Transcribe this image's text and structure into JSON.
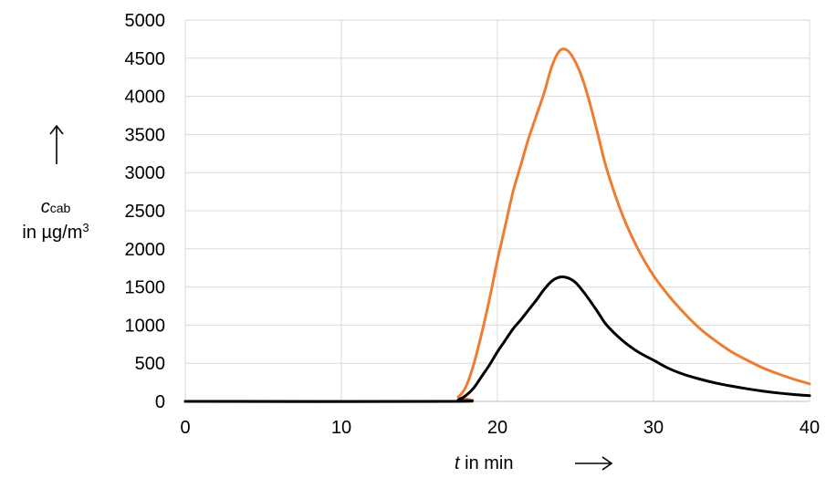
{
  "chart_data": {
    "type": "line",
    "xlim": [
      0,
      40
    ],
    "ylim": [
      0,
      5000
    ],
    "x_ticks": [
      "0",
      "10",
      "20",
      "30",
      "40"
    ],
    "y_ticks": [
      "0",
      "500",
      "1000",
      "1500",
      "2000",
      "2500",
      "3000",
      "3500",
      "4000",
      "4500",
      "5000"
    ],
    "grid": true,
    "ylabel": {
      "symbol": "c",
      "subscript": "cab",
      "unit_prefix": "in µg/m",
      "unit_exp": "3"
    },
    "xlabel": {
      "symbol": "t",
      "unit": " in min"
    },
    "series": [
      {
        "color": "#ED7D31",
        "points": [
          [
            0,
            0
          ],
          [
            17,
            0
          ],
          [
            17.5,
            60
          ],
          [
            18,
            200
          ],
          [
            18.5,
            500
          ],
          [
            19,
            900
          ],
          [
            19.5,
            1350
          ],
          [
            20,
            1850
          ],
          [
            20.5,
            2300
          ],
          [
            21,
            2750
          ],
          [
            21.5,
            3100
          ],
          [
            22,
            3450
          ],
          [
            22.5,
            3750
          ],
          [
            23,
            4050
          ],
          [
            23.5,
            4400
          ],
          [
            24,
            4600
          ],
          [
            24.5,
            4600
          ],
          [
            25,
            4450
          ],
          [
            25.5,
            4200
          ],
          [
            26,
            3850
          ],
          [
            26.5,
            3450
          ],
          [
            27,
            3050
          ],
          [
            28,
            2450
          ],
          [
            29,
            2000
          ],
          [
            30,
            1650
          ],
          [
            31,
            1380
          ],
          [
            32,
            1150
          ],
          [
            33,
            950
          ],
          [
            34,
            790
          ],
          [
            35,
            650
          ],
          [
            36,
            540
          ],
          [
            37,
            440
          ],
          [
            38,
            360
          ],
          [
            39,
            290
          ],
          [
            40,
            230
          ]
        ]
      },
      {
        "color": "#000000",
        "points": [
          [
            0,
            0
          ],
          [
            17,
            0
          ],
          [
            17.5,
            20
          ],
          [
            18,
            80
          ],
          [
            18.5,
            180
          ],
          [
            19,
            330
          ],
          [
            19.5,
            480
          ],
          [
            20,
            650
          ],
          [
            20.5,
            800
          ],
          [
            21,
            950
          ],
          [
            21.5,
            1070
          ],
          [
            22,
            1200
          ],
          [
            22.5,
            1330
          ],
          [
            23,
            1470
          ],
          [
            23.5,
            1580
          ],
          [
            24,
            1630
          ],
          [
            24.5,
            1620
          ],
          [
            25,
            1560
          ],
          [
            25.5,
            1440
          ],
          [
            26,
            1300
          ],
          [
            26.5,
            1150
          ],
          [
            27,
            1000
          ],
          [
            28,
            800
          ],
          [
            29,
            650
          ],
          [
            30,
            540
          ],
          [
            31,
            430
          ],
          [
            32,
            350
          ],
          [
            33,
            290
          ],
          [
            34,
            240
          ],
          [
            35,
            200
          ],
          [
            36,
            165
          ],
          [
            37,
            135
          ],
          [
            38,
            110
          ],
          [
            39,
            90
          ],
          [
            40,
            75
          ]
        ]
      }
    ]
  }
}
